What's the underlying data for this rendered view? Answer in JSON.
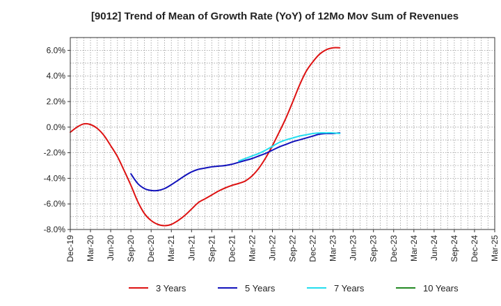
{
  "chart_data": {
    "type": "line",
    "title": "[9012]  Trend of Mean of Growth Rate (YoY) of 12Mo Mov Sum of Revenues",
    "xlabel": "",
    "ylabel": "",
    "x_ticks": [
      "Dec-19",
      "Mar-20",
      "Jun-20",
      "Sep-20",
      "Dec-20",
      "Mar-21",
      "Jun-21",
      "Sep-21",
      "Dec-21",
      "Mar-22",
      "Jun-22",
      "Sep-22",
      "Dec-22",
      "Mar-23",
      "Jun-23",
      "Sep-23",
      "Dec-23",
      "Mar-24",
      "Jun-24",
      "Sep-24",
      "Dec-24",
      "Mar-25"
    ],
    "y_ticks": [
      6,
      4,
      2,
      0,
      -2,
      -4,
      -6,
      -8
    ],
    "y_tick_labels": [
      "6.0%",
      "4.0%",
      "2.0%",
      "0.0%",
      "-2.0%",
      "-4.0%",
      "-6.0%",
      "-8.0%"
    ],
    "ylim": [
      -8,
      7
    ],
    "grid": true,
    "legend_position": "bottom",
    "series": [
      {
        "name": "3 Years",
        "color": "#dd1111",
        "points": [
          [
            0,
            -0.4
          ],
          [
            1,
            0.0
          ],
          [
            2,
            0.25
          ],
          [
            3,
            0.2
          ],
          [
            4,
            -0.1
          ],
          [
            5,
            -0.65
          ],
          [
            6,
            -1.45
          ],
          [
            7,
            -2.3
          ],
          [
            8,
            -3.4
          ],
          [
            9,
            -4.55
          ],
          [
            10,
            -5.8
          ],
          [
            11,
            -6.75
          ],
          [
            12,
            -7.3
          ],
          [
            13,
            -7.6
          ],
          [
            14,
            -7.7
          ],
          [
            15,
            -7.6
          ],
          [
            16,
            -7.3
          ],
          [
            17,
            -6.9
          ],
          [
            18,
            -6.4
          ],
          [
            19,
            -5.9
          ],
          [
            20,
            -5.6
          ],
          [
            21,
            -5.3
          ],
          [
            22,
            -5.0
          ],
          [
            23,
            -4.75
          ],
          [
            24,
            -4.55
          ],
          [
            25,
            -4.4
          ],
          [
            26,
            -4.2
          ],
          [
            27,
            -3.8
          ],
          [
            28,
            -3.2
          ],
          [
            29,
            -2.4
          ],
          [
            30,
            -1.45
          ],
          [
            31,
            -0.4
          ],
          [
            32,
            0.7
          ],
          [
            33,
            1.95
          ],
          [
            34,
            3.25
          ],
          [
            35,
            4.35
          ],
          [
            36,
            5.1
          ],
          [
            37,
            5.7
          ],
          [
            38,
            6.05
          ],
          [
            39,
            6.2
          ],
          [
            40,
            6.2
          ]
        ]
      },
      {
        "name": "5 Years",
        "color": "#1111bb",
        "points": [
          [
            9,
            -3.65
          ],
          [
            10,
            -4.4
          ],
          [
            11,
            -4.8
          ],
          [
            12,
            -4.95
          ],
          [
            13,
            -4.95
          ],
          [
            14,
            -4.8
          ],
          [
            15,
            -4.5
          ],
          [
            16,
            -4.15
          ],
          [
            17,
            -3.8
          ],
          [
            18,
            -3.5
          ],
          [
            19,
            -3.3
          ],
          [
            20,
            -3.2
          ],
          [
            21,
            -3.1
          ],
          [
            22,
            -3.05
          ],
          [
            23,
            -3.0
          ],
          [
            24,
            -2.9
          ],
          [
            25,
            -2.75
          ],
          [
            26,
            -2.6
          ],
          [
            27,
            -2.45
          ],
          [
            28,
            -2.25
          ],
          [
            29,
            -2.05
          ],
          [
            30,
            -1.8
          ],
          [
            31,
            -1.55
          ],
          [
            32,
            -1.35
          ],
          [
            33,
            -1.15
          ],
          [
            34,
            -1.0
          ],
          [
            35,
            -0.85
          ],
          [
            36,
            -0.7
          ],
          [
            37,
            -0.55
          ],
          [
            38,
            -0.5
          ],
          [
            39,
            -0.5
          ],
          [
            40,
            -0.45
          ]
        ]
      },
      {
        "name": "7 Years",
        "color": "#22ddee",
        "points": [
          [
            25,
            -2.65
          ],
          [
            26,
            -2.45
          ],
          [
            27,
            -2.25
          ],
          [
            28,
            -2.05
          ],
          [
            29,
            -1.8
          ],
          [
            30,
            -1.5
          ],
          [
            31,
            -1.2
          ],
          [
            32,
            -1.0
          ],
          [
            33,
            -0.85
          ],
          [
            34,
            -0.7
          ],
          [
            35,
            -0.6
          ],
          [
            36,
            -0.5
          ],
          [
            37,
            -0.45
          ],
          [
            38,
            -0.45
          ],
          [
            39,
            -0.45
          ],
          [
            40,
            -0.5
          ]
        ]
      },
      {
        "name": "10 Years",
        "color": "#228822",
        "points": []
      }
    ]
  }
}
